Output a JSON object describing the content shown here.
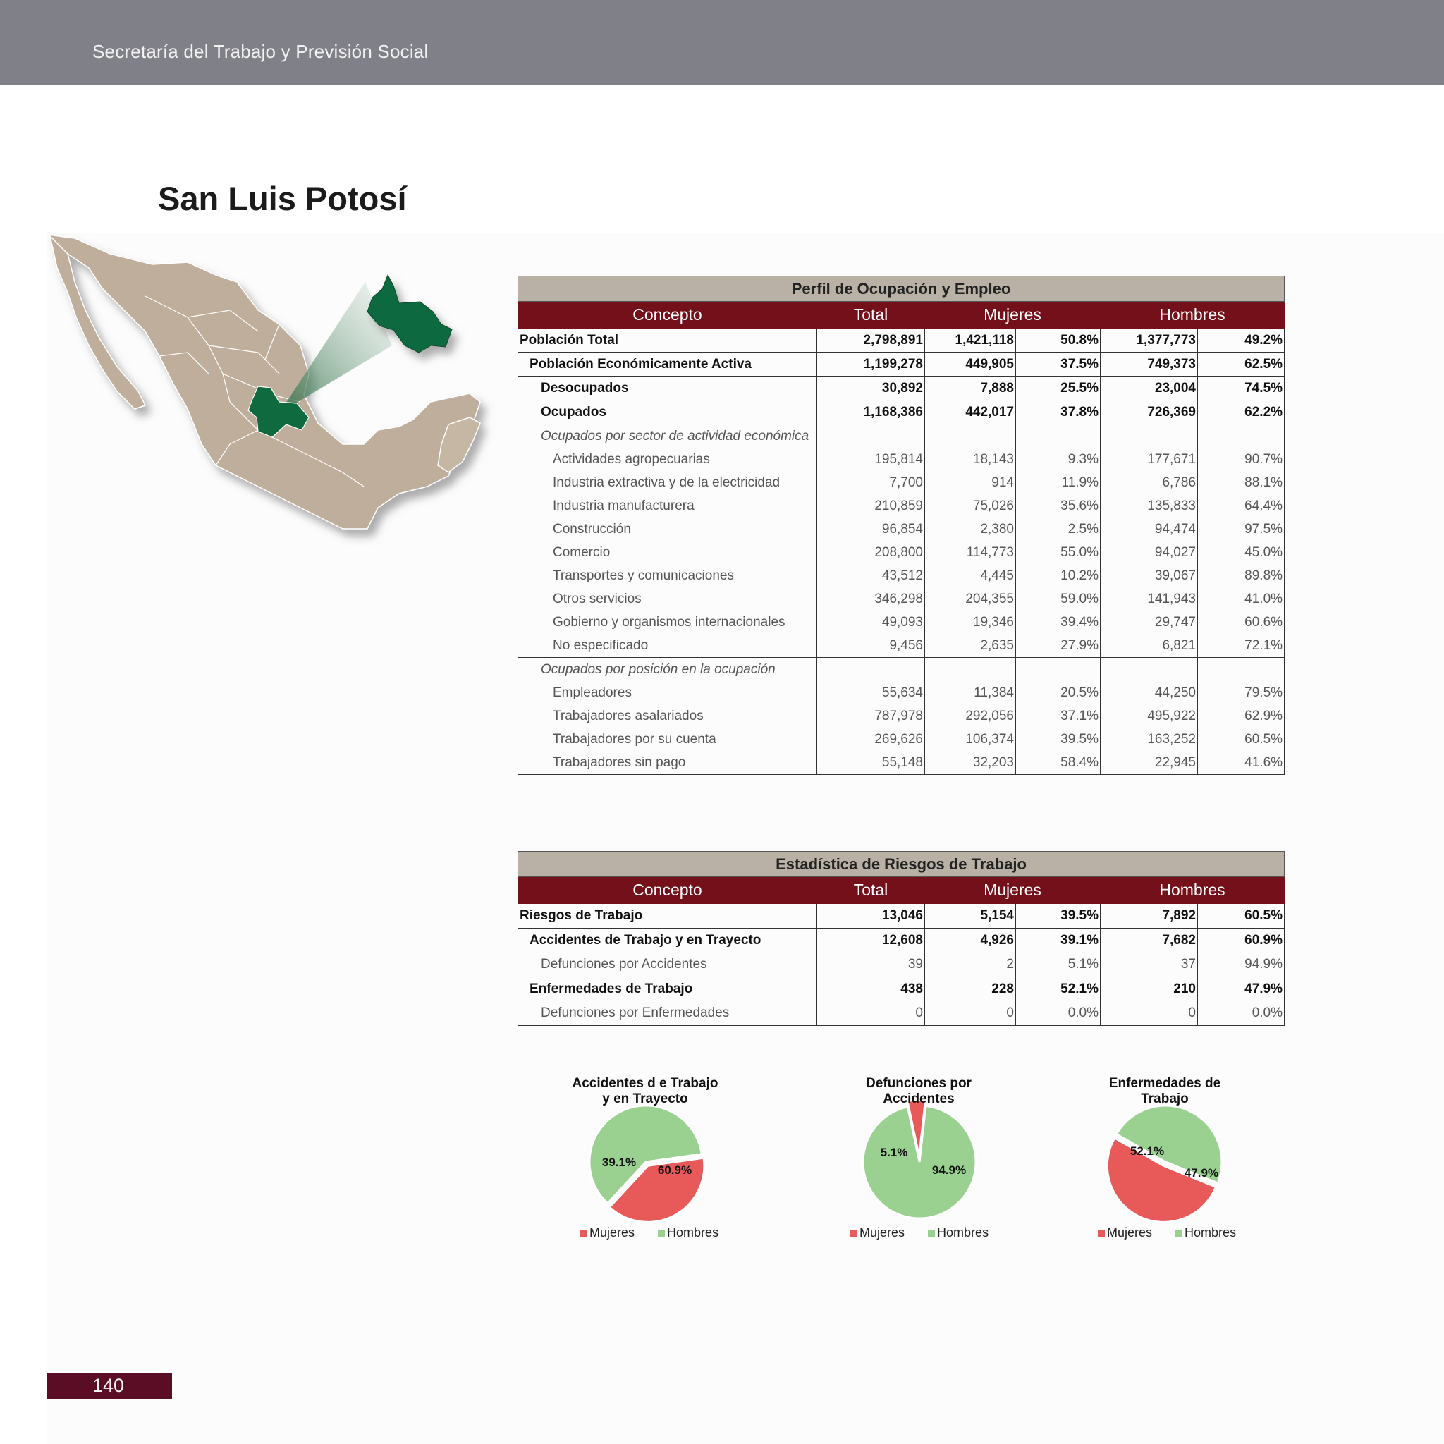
{
  "header": {
    "title": "Secretaría del Trabajo y Previsión Social"
  },
  "state_title": "San Luis Potosí",
  "colors": {
    "header_bar": "#808088",
    "table_header": "#74101a",
    "caption_bg": "#b9b0a6",
    "map_land": "#bfae9b",
    "map_highlight": "#0f6b3f",
    "mujeres": "#e85a5a",
    "hombres": "#9ad191",
    "page_tab": "#5a0d25"
  },
  "table1": {
    "caption": "Perfil de Ocupación y Empleo",
    "headers": [
      "Concepto",
      "Total",
      "Mujeres",
      "Hombres"
    ],
    "rows": [
      {
        "label": "Población Total",
        "total": "2,798,891",
        "m": "1,421,118",
        "mp": "50.8%",
        "h": "1,377,773",
        "hp": "49.2%"
      },
      {
        "label": "Población Económicamente Activa",
        "total": "1,199,278",
        "m": "449,905",
        "mp": "37.5%",
        "h": "749,373",
        "hp": "62.5%"
      },
      {
        "label": "Desocupados",
        "total": "30,892",
        "m": "7,888",
        "mp": "25.5%",
        "h": "23,004",
        "hp": "74.5%"
      },
      {
        "label": "Ocupados",
        "total": "1,168,386",
        "m": "442,017",
        "mp": "37.8%",
        "h": "726,369",
        "hp": "62.2%"
      }
    ],
    "sector_title": "Ocupados por sector de actividad económica",
    "sector_rows": [
      {
        "label": "Actividades agropecuarias",
        "total": "195,814",
        "m": "18,143",
        "mp": "9.3%",
        "h": "177,671",
        "hp": "90.7%"
      },
      {
        "label": "Industria extractiva y de la electricidad",
        "total": "7,700",
        "m": "914",
        "mp": "11.9%",
        "h": "6,786",
        "hp": "88.1%"
      },
      {
        "label": "Industria manufacturera",
        "total": "210,859",
        "m": "75,026",
        "mp": "35.6%",
        "h": "135,833",
        "hp": "64.4%"
      },
      {
        "label": "Construcción",
        "total": "96,854",
        "m": "2,380",
        "mp": "2.5%",
        "h": "94,474",
        "hp": "97.5%"
      },
      {
        "label": "Comercio",
        "total": "208,800",
        "m": "114,773",
        "mp": "55.0%",
        "h": "94,027",
        "hp": "45.0%"
      },
      {
        "label": "Transportes y comunicaciones",
        "total": "43,512",
        "m": "4,445",
        "mp": "10.2%",
        "h": "39,067",
        "hp": "89.8%"
      },
      {
        "label": "Otros servicios",
        "total": "346,298",
        "m": "204,355",
        "mp": "59.0%",
        "h": "141,943",
        "hp": "41.0%"
      },
      {
        "label": "Gobierno y organismos internacionales",
        "total": "49,093",
        "m": "19,346",
        "mp": "39.4%",
        "h": "29,747",
        "hp": "60.6%"
      },
      {
        "label": "No especificado",
        "total": "9,456",
        "m": "2,635",
        "mp": "27.9%",
        "h": "6,821",
        "hp": "72.1%"
      }
    ],
    "position_title": "Ocupados por posición en la ocupación",
    "position_rows": [
      {
        "label": "Empleadores",
        "total": "55,634",
        "m": "11,384",
        "mp": "20.5%",
        "h": "44,250",
        "hp": "79.5%"
      },
      {
        "label": "Trabajadores asalariados",
        "total": "787,978",
        "m": "292,056",
        "mp": "37.1%",
        "h": "495,922",
        "hp": "62.9%"
      },
      {
        "label": "Trabajadores por su cuenta",
        "total": "269,626",
        "m": "106,374",
        "mp": "39.5%",
        "h": "163,252",
        "hp": "60.5%"
      },
      {
        "label": "Trabajadores sin pago",
        "total": "55,148",
        "m": "32,203",
        "mp": "58.4%",
        "h": "22,945",
        "hp": "41.6%"
      }
    ]
  },
  "table2": {
    "caption": "Estadística de Riesgos de Trabajo",
    "headers": [
      "Concepto",
      "Total",
      "Mujeres",
      "Hombres"
    ],
    "rows": [
      {
        "label": "Riesgos de Trabajo",
        "total": "13,046",
        "m": "5,154",
        "mp": "39.5%",
        "h": "7,892",
        "hp": "60.5%"
      },
      {
        "label": "Accidentes de Trabajo y en Trayecto",
        "total": "12,608",
        "m": "4,926",
        "mp": "39.1%",
        "h": "7,682",
        "hp": "60.9%"
      },
      {
        "label": "Defunciones por Accidentes",
        "total": "39",
        "m": "2",
        "mp": "5.1%",
        "h": "37",
        "hp": "94.9%"
      },
      {
        "label": "Enfermedades de Trabajo",
        "total": "438",
        "m": "228",
        "mp": "52.1%",
        "h": "210",
        "hp": "47.9%"
      },
      {
        "label": "Defunciones por Enfermedades",
        "total": "0",
        "m": "0",
        "mp": "0.0%",
        "h": "0",
        "hp": "0.0%"
      }
    ]
  },
  "chart_data": [
    {
      "type": "pie",
      "title": [
        "Accidentes d e Trabajo",
        "y en Trayecto"
      ],
      "categories": [
        "Mujeres",
        "Hombres"
      ],
      "values": [
        39.1,
        60.9
      ],
      "labels": [
        "39.1%",
        "60.9%"
      ],
      "colors": [
        "#e85a5a",
        "#9ad191"
      ],
      "legend": "bottom"
    },
    {
      "type": "pie",
      "title": [
        "Defunciones por",
        "Accidentes"
      ],
      "categories": [
        "Mujeres",
        "Hombres"
      ],
      "values": [
        5.1,
        94.9
      ],
      "labels": [
        "5.1%",
        "94.9%"
      ],
      "colors": [
        "#e85a5a",
        "#9ad191"
      ],
      "legend": "bottom"
    },
    {
      "type": "pie",
      "title": [
        "Enfermedades de",
        "Trabajo"
      ],
      "categories": [
        "Mujeres",
        "Hombres"
      ],
      "values": [
        52.1,
        47.9
      ],
      "labels": [
        "52.1%",
        "47.9%"
      ],
      "colors": [
        "#e85a5a",
        "#9ad191"
      ],
      "legend": "bottom"
    }
  ],
  "legend_labels": [
    "Mujeres",
    "Hombres"
  ],
  "page_number": "140"
}
